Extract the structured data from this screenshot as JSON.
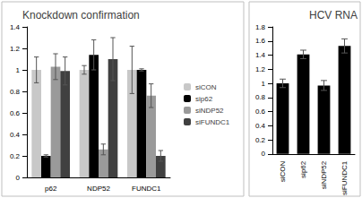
{
  "chart_data": [
    {
      "type": "bar",
      "title": "Knockdown confirmation",
      "categories": [
        "p62",
        "NDP52",
        "FUNDC1"
      ],
      "series": [
        {
          "name": "siCON",
          "color": "#c8c8c8",
          "values": [
            1.0,
            1.0,
            1.0
          ],
          "errors": [
            0.12,
            0.04,
            0.22
          ]
        },
        {
          "name": "sip62",
          "color": "#000000",
          "values": [
            0.2,
            1.14,
            1.0
          ],
          "errors": [
            0.01,
            0.14,
            0.01
          ]
        },
        {
          "name": "siNDP52",
          "color": "#9a9a9a",
          "values": [
            1.03,
            0.26,
            0.76
          ],
          "errors": [
            0.12,
            0.05,
            0.11
          ]
        },
        {
          "name": "siFUNDC1",
          "color": "#404040",
          "values": [
            0.99,
            1.1,
            0.2
          ],
          "errors": [
            0.13,
            0.2,
            0.05
          ]
        }
      ],
      "ylim": [
        0,
        1.4
      ],
      "yticks": [
        0,
        0.2,
        0.4,
        0.6,
        0.8,
        1,
        1.2,
        1.4
      ],
      "legend": "right",
      "grid": false
    },
    {
      "type": "bar",
      "title": "HCV RNA",
      "categories": [
        "siCON",
        "sip62",
        "siNDP52",
        "siFUNDC1"
      ],
      "values": [
        1.0,
        1.41,
        0.97,
        1.53
      ],
      "errors": [
        0.06,
        0.06,
        0.07,
        0.1
      ],
      "color": "#000000",
      "ylim": [
        0,
        1.8
      ],
      "yticks": [
        0,
        0.2,
        0.4,
        0.6,
        0.8,
        1,
        1.2,
        1.4,
        1.6,
        1.8
      ],
      "grid": false
    }
  ]
}
